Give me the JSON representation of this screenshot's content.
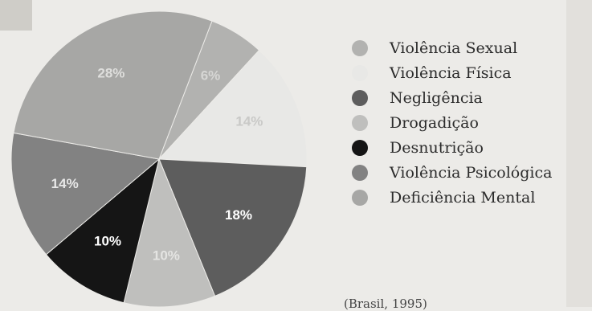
{
  "chart_data": {
    "type": "pie",
    "title": "",
    "start_angle_deg": 21,
    "direction": "clockwise",
    "slices": [
      {
        "category": "Violência Sexual",
        "value": 6,
        "label": "6%",
        "color": "#b2b2b0",
        "label_color": "#d6d6d4"
      },
      {
        "category": "Violência Física",
        "value": 14,
        "label": "14%",
        "color": "#e8e8e6",
        "label_color": "#c9c9c7"
      },
      {
        "category": "Negligência",
        "value": 18,
        "label": "18%",
        "color": "#5d5d5d",
        "label_color": "#ffffff"
      },
      {
        "category": "Drogadição",
        "value": 10,
        "label": "10%",
        "color": "#bfbfbd",
        "label_color": "#e4e4e2"
      },
      {
        "category": "Desnutrição",
        "value": 10,
        "label": "10%",
        "color": "#151515",
        "label_color": "#ffffff"
      },
      {
        "category": "Violência Psicológica",
        "value": 14,
        "label": "14%",
        "color": "#828282",
        "label_color": "#e8e8e8"
      },
      {
        "category": "Deficiência Mental",
        "value": 28,
        "label": "28%",
        "color": "#a7a7a5",
        "label_color": "#dededc"
      }
    ],
    "legend_position": "right"
  },
  "legend": {
    "items": [
      {
        "label": "Violência Sexual",
        "color": "#b2b2b0"
      },
      {
        "label": "Violência Física",
        "color": "#e8e8e6"
      },
      {
        "label": "Negligência",
        "color": "#5d5d5d"
      },
      {
        "label": "Drogadição",
        "color": "#bfbfbd"
      },
      {
        "label": "Desnutrição",
        "color": "#151515"
      },
      {
        "label": "Violência Psicológica",
        "color": "#828282"
      },
      {
        "label": "Deficiência Mental",
        "color": "#a7a7a5"
      }
    ]
  },
  "footer": {
    "text": "(Brasil, 1995)"
  }
}
